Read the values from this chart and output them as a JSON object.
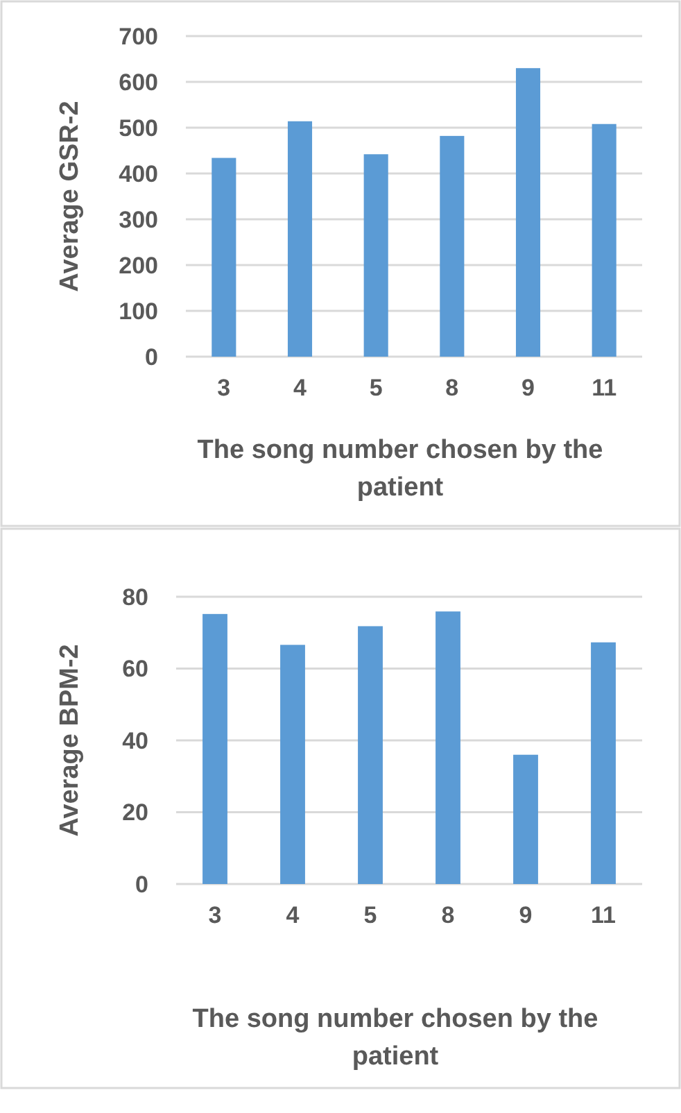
{
  "chart_data": [
    {
      "type": "bar",
      "xlabel": "The song number chosen by the patient",
      "ylabel": "Average GSR-2",
      "categories": [
        "3",
        "4",
        "5",
        "8",
        "9",
        "11"
      ],
      "values": [
        434,
        514,
        442,
        482,
        630,
        508
      ],
      "color": "#5b9bd5",
      "ylim": [
        0,
        700
      ],
      "yticks": [
        0,
        100,
        200,
        300,
        400,
        500,
        600,
        700
      ],
      "grid": "y"
    },
    {
      "type": "bar",
      "xlabel": "The song number chosen by the patient",
      "ylabel": "Average BPM-2",
      "categories": [
        "3",
        "4",
        "5",
        "8",
        "9",
        "11"
      ],
      "values": [
        75.2,
        66.6,
        71.8,
        75.9,
        36.0,
        67.3
      ],
      "color": "#5b9bd5",
      "ylim": [
        0,
        80
      ],
      "yticks": [
        0,
        20,
        40,
        60,
        80
      ],
      "grid": "y"
    }
  ]
}
